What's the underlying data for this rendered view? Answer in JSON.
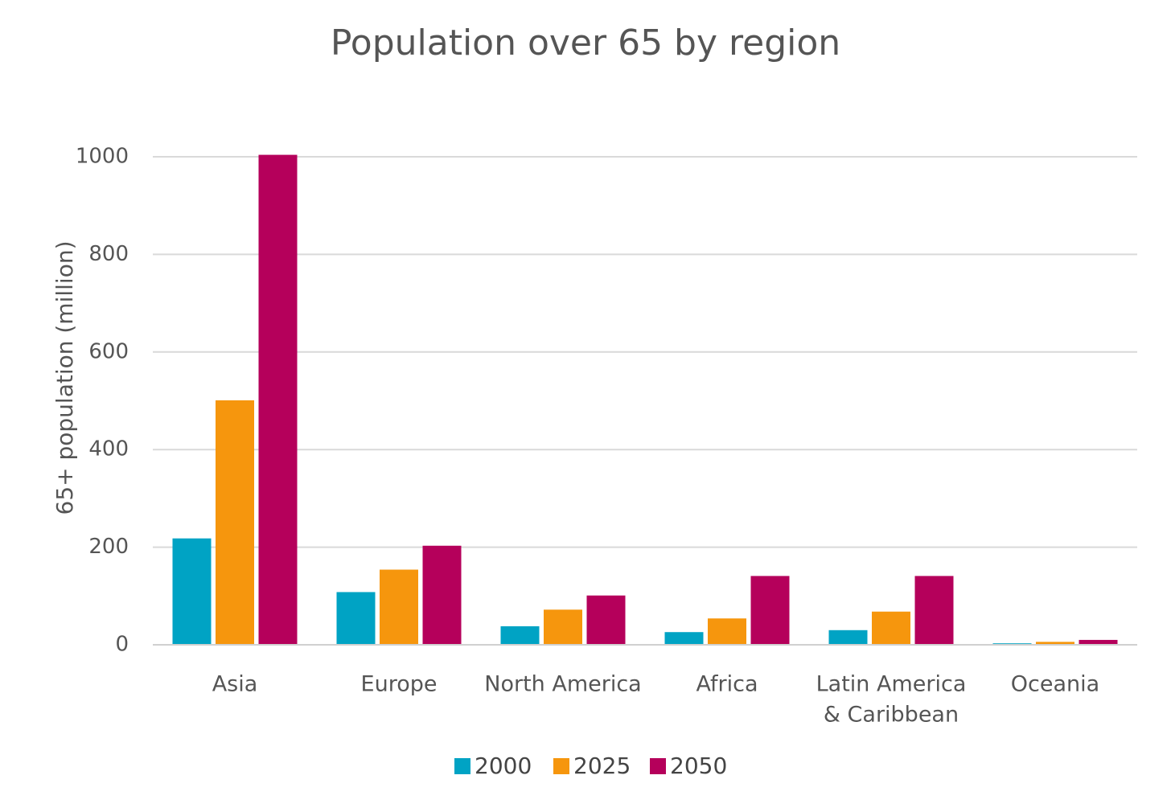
{
  "chart_data": {
    "type": "bar",
    "title": "Population over 65 by region",
    "xlabel": "",
    "ylabel": "65+ population (million)",
    "ylim": [
      0,
      1000
    ],
    "yticks": [
      0,
      200,
      400,
      600,
      800,
      1000
    ],
    "grid": true,
    "legend": "bottom",
    "categories": [
      [
        "Asia"
      ],
      [
        "Europe"
      ],
      [
        "North America"
      ],
      [
        "Africa"
      ],
      [
        "Latin America",
        "& Caribbean"
      ],
      [
        "Oceania"
      ]
    ],
    "series": [
      {
        "name": "2000",
        "color": "#00a3c4",
        "values": [
          218,
          108,
          38,
          26,
          30,
          3
        ]
      },
      {
        "name": "2025",
        "color": "#f6960d",
        "values": [
          501,
          154,
          72,
          54,
          68,
          6
        ]
      },
      {
        "name": "2050",
        "color": "#b5005b",
        "values": [
          1004,
          203,
          101,
          141,
          141,
          10
        ]
      }
    ]
  }
}
